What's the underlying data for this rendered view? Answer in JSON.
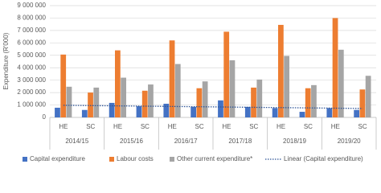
{
  "chart_data": {
    "type": "bar",
    "y_label": "Expenditure (R'000)",
    "groups": [
      "2014/15",
      "2015/16",
      "2016/17",
      "2017/18",
      "2018/19",
      "2019/20"
    ],
    "categories": [
      "HE",
      "SC",
      "HE",
      "SC",
      "HE",
      "SC",
      "HE",
      "SC",
      "HE",
      "SC",
      "HE",
      "SC"
    ],
    "series": [
      {
        "name": "Capital expenditure",
        "color": "#4472c4",
        "values": [
          780000,
          600000,
          1170000,
          900000,
          1100000,
          850000,
          1370000,
          850000,
          750000,
          450000,
          750000,
          600000
        ]
      },
      {
        "name": "Labour costs",
        "color": "#ed7d31",
        "values": [
          5060000,
          2000000,
          5400000,
          2150000,
          6200000,
          2350000,
          6900000,
          2400000,
          7450000,
          2350000,
          8000000,
          2250000
        ]
      },
      {
        "name": "Other current expenditure*",
        "color": "#a5a5a5",
        "values": [
          2470000,
          2400000,
          3200000,
          2650000,
          4300000,
          2900000,
          4600000,
          3050000,
          4950000,
          2600000,
          5450000,
          3350000
        ]
      }
    ],
    "trendline": {
      "name": "Linear (Capital expenditure)",
      "of_series": 0,
      "color": "#2f5597"
    },
    "ylim": [
      0,
      9000000
    ],
    "yticks": [
      0,
      {
        "value": 1000000,
        "label": "1 000 000"
      },
      {
        "value": 2000000,
        "label": "2 000 000"
      },
      {
        "value": 3000000,
        "label": "3 000 000"
      },
      {
        "value": 4000000,
        "label": "4 000 000"
      },
      {
        "value": 5000000,
        "label": "5 000 000"
      },
      {
        "value": 6000000,
        "label": "6 000 000"
      },
      {
        "value": 7000000,
        "label": "7 000 000"
      },
      {
        "value": 8000000,
        "label": "8 000 000"
      },
      {
        "value": 9000000,
        "label": "9 000 000"
      }
    ],
    "grid": true,
    "legend": "bottom"
  }
}
